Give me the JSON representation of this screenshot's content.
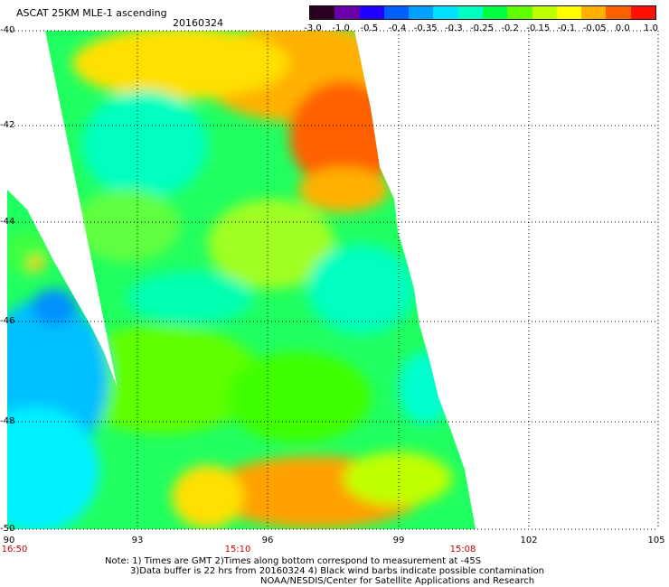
{
  "title": "ASCAT 25KM MLE-1 ascending",
  "date": "20160324",
  "colorbar": {
    "ticks": [
      "-3.0",
      "-1.0",
      "-0.5",
      "-0.4",
      "-0.35",
      "-0.3",
      "-0.25",
      "-0.2",
      "-0.15",
      "-0.1",
      "-0.05",
      "0.0",
      "1.0"
    ],
    "colors": [
      "#2a0020",
      "#6a00a8",
      "#2000ff",
      "#0060ff",
      "#00a0ff",
      "#00e0ff",
      "#00ffc0",
      "#00ff40",
      "#60ff00",
      "#c0ff00",
      "#ffff00",
      "#ffb000",
      "#ff6000",
      "#ff1000"
    ]
  },
  "map": {
    "lat_labels": [
      "-40",
      "-42",
      "-44",
      "-46",
      "-48",
      "-50"
    ],
    "lon_labels": [
      "90",
      "93",
      "96",
      "99",
      "102",
      "105"
    ],
    "time_labels": [
      "16:50",
      "15:10",
      "15:08"
    ]
  },
  "notes": {
    "line1": "Note: 1) Times are GMT 2)Times along bottom correspond to measurement at -45S",
    "line2": "3)Data buffer is 22 hrs from 20160324 4) Black wind barbs indicate possible contamination",
    "line3": "NOAA/NESDIS/Center for Satellite Applications and Research"
  }
}
